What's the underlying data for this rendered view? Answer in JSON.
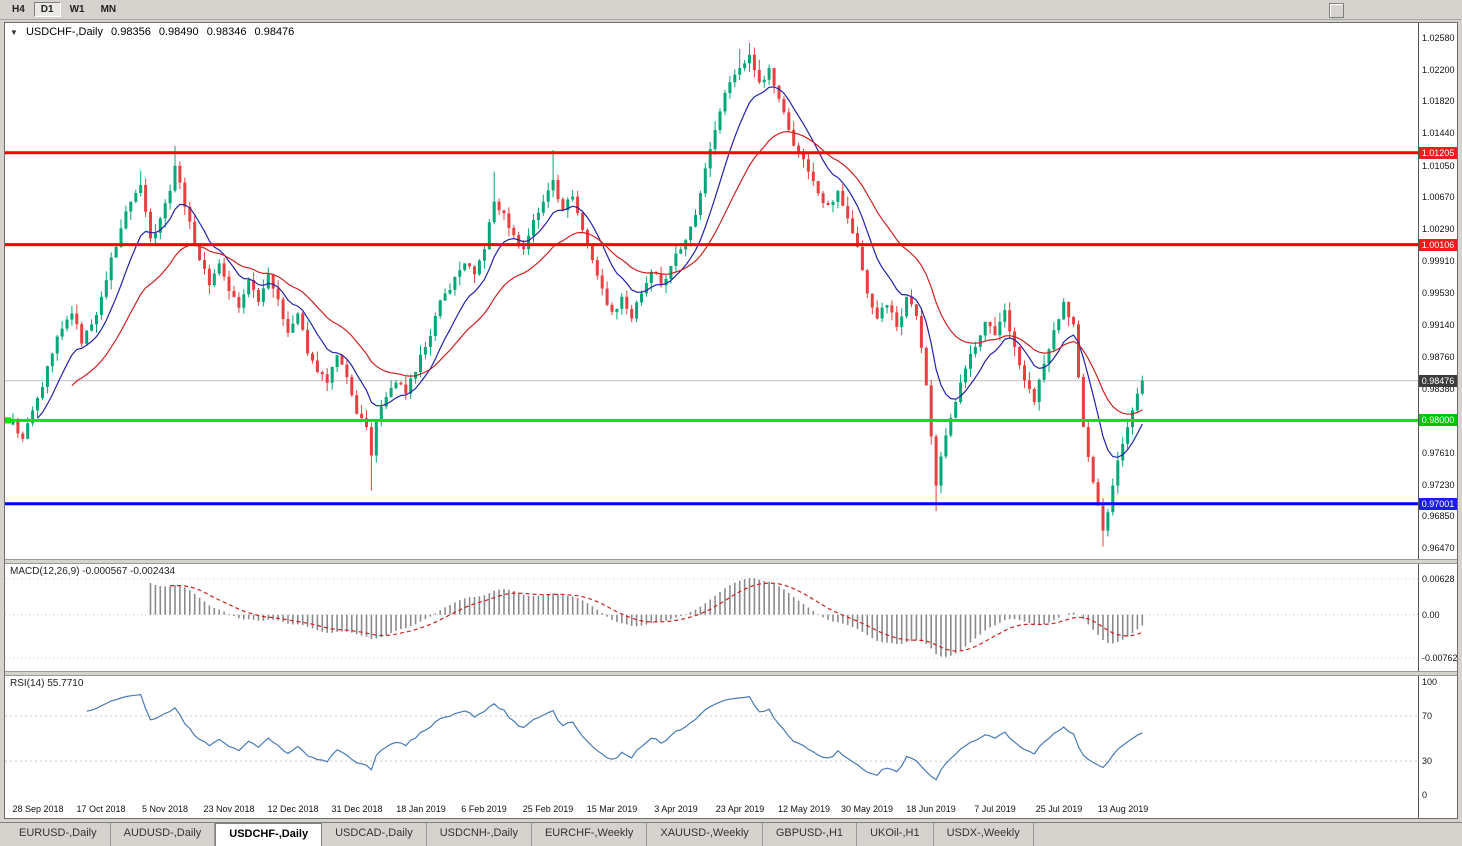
{
  "toolbar": {
    "timeframes": [
      {
        "label": "H4",
        "active": false
      },
      {
        "label": "D1",
        "active": true
      },
      {
        "label": "W1",
        "active": false
      },
      {
        "label": "MN",
        "active": false
      }
    ]
  },
  "chart_header": {
    "symbol": "USDCHF-,Daily",
    "open": "0.98356",
    "high": "0.98490",
    "low": "0.98346",
    "close": "0.98476"
  },
  "indicators": {
    "macd": "MACD(12,26,9) -0.000567 -0.002434",
    "rsi": "RSI(14) 55.7710"
  },
  "tabs": {
    "active_index": 2,
    "items": [
      "EURUSD-,Daily",
      "AUDUSD-,Daily",
      "USDCHF-,Daily",
      "USDCAD-,Daily",
      "USDCNH-,Daily",
      "EURCHF-,Weekly",
      "XAUUSD-,Weekly",
      "GBPUSD-,H1",
      "UKOil-,H1",
      "USDX-,Weekly"
    ]
  },
  "chart_data": {
    "type": "candlestick",
    "symbol": "USDCHF",
    "timeframe": "Daily",
    "current_ohlc": {
      "open": 0.98356,
      "high": 0.9849,
      "low": 0.98346,
      "close": 0.98476
    },
    "current_price": 0.98476,
    "ylim": [
      0.9634,
      1.0276
    ],
    "bars_total": 231,
    "first_open": 0.9795,
    "y_ticks": [
      "1.02580",
      "1.02200",
      "1.01820",
      "1.01440",
      "1.01050",
      "1.00670",
      "1.00290",
      "0.99910",
      "0.99530",
      "0.99140",
      "0.98760",
      "0.98380",
      "0.97610",
      "0.97230",
      "0.96850",
      "0.96470"
    ],
    "badges": [
      {
        "label": "1.01205",
        "price": 1.01205,
        "color": "#ee1c1c"
      },
      {
        "label": "1.00106",
        "price": 1.00106,
        "color": "#ee1c1c"
      },
      {
        "label": "0.98476",
        "price": 0.98476,
        "color": "#3c3c3c"
      },
      {
        "label": "0.98000",
        "price": 0.98,
        "color": "#00c400"
      },
      {
        "label": "0.97001",
        "price": 0.97001,
        "color": "#1c1cee"
      }
    ],
    "hlines": [
      {
        "price": 1.01205,
        "color": "#ff0000",
        "width": 3,
        "name": "resistance-upper"
      },
      {
        "price": 1.00106,
        "color": "#ff0000",
        "width": 3,
        "name": "resistance-lower"
      },
      {
        "price": 0.98,
        "color": "#00e400",
        "width": 3,
        "marker": true,
        "name": "support-green"
      },
      {
        "price": 0.97001,
        "color": "#0000ff",
        "width": 3,
        "name": "support-blue"
      }
    ],
    "x_labels": [
      [
        "28 Sep 2018",
        5
      ],
      [
        "17 Oct 2018",
        18
      ],
      [
        "5 Nov 2018",
        31
      ],
      [
        "23 Nov 2018",
        44
      ],
      [
        "12 Dec 2018",
        57
      ],
      [
        "31 Dec 2018",
        70
      ],
      [
        "18 Jan 2019",
        83
      ],
      [
        "6 Feb 2019",
        96
      ],
      [
        "25 Feb 2019",
        109
      ],
      [
        "15 Mar 2019",
        122
      ],
      [
        "3 Apr 2019",
        135
      ],
      [
        "23 Apr 2019",
        148
      ],
      [
        "12 May 2019",
        161
      ],
      [
        "30 May 2019",
        174
      ],
      [
        "18 Jun 2019",
        187
      ],
      [
        "7 Jul 2019",
        200
      ],
      [
        "25 Jul 2019",
        213
      ],
      [
        "13 Aug 2019",
        226
      ]
    ],
    "price_waypoints": [
      [
        0,
        0.98
      ],
      [
        2,
        0.9778
      ],
      [
        4,
        0.9812
      ],
      [
        6,
        0.984
      ],
      [
        8,
        0.988
      ],
      [
        10,
        0.991
      ],
      [
        12,
        0.9928
      ],
      [
        14,
        0.9892
      ],
      [
        16,
        0.9915
      ],
      [
        18,
        0.9948
      ],
      [
        20,
        0.9995
      ],
      [
        22,
        1.003
      ],
      [
        24,
        1.0062
      ],
      [
        26,
        1.0082
      ],
      [
        28,
        1.0018
      ],
      [
        30,
        1.0042
      ],
      [
        32,
        1.0075
      ],
      [
        33,
        1.0105
      ],
      [
        34,
        1.0085
      ],
      [
        36,
        1.0038
      ],
      [
        38,
        0.9992
      ],
      [
        40,
        0.9962
      ],
      [
        42,
        0.9988
      ],
      [
        44,
        0.9955
      ],
      [
        46,
        0.9935
      ],
      [
        48,
        0.9968
      ],
      [
        50,
        0.9942
      ],
      [
        52,
        0.9975
      ],
      [
        54,
        0.9945
      ],
      [
        56,
        0.9905
      ],
      [
        58,
        0.9928
      ],
      [
        60,
        0.988
      ],
      [
        62,
        0.9858
      ],
      [
        64,
        0.9845
      ],
      [
        66,
        0.9878
      ],
      [
        68,
        0.9852
      ],
      [
        70,
        0.9808
      ],
      [
        72,
        0.9792
      ],
      [
        73,
        0.9758
      ],
      [
        74,
        0.98
      ],
      [
        76,
        0.9828
      ],
      [
        78,
        0.9845
      ],
      [
        80,
        0.9832
      ],
      [
        82,
        0.9858
      ],
      [
        84,
        0.9888
      ],
      [
        86,
        0.9925
      ],
      [
        88,
        0.9952
      ],
      [
        90,
        0.9972
      ],
      [
        92,
        0.9988
      ],
      [
        94,
        0.9975
      ],
      [
        96,
        1.0005
      ],
      [
        98,
        1.0062
      ],
      [
        100,
        1.0048
      ],
      [
        102,
        1.0022
      ],
      [
        104,
        1.0005
      ],
      [
        106,
        1.004
      ],
      [
        108,
        1.0062
      ],
      [
        110,
        1.0088
      ],
      [
        112,
        1.0052
      ],
      [
        114,
        1.0068
      ],
      [
        116,
        1.0028
      ],
      [
        118,
        0.9992
      ],
      [
        120,
        0.9958
      ],
      [
        122,
        0.993
      ],
      [
        124,
        0.9948
      ],
      [
        126,
        0.9922
      ],
      [
        128,
        0.9952
      ],
      [
        130,
        0.9978
      ],
      [
        132,
        0.9962
      ],
      [
        134,
        0.9985
      ],
      [
        136,
        1.0005
      ],
      [
        138,
        1.0032
      ],
      [
        140,
        1.0072
      ],
      [
        142,
        1.0125
      ],
      [
        144,
        1.017
      ],
      [
        146,
        1.0205
      ],
      [
        148,
        1.0222
      ],
      [
        150,
        1.0238
      ],
      [
        152,
        1.0205
      ],
      [
        154,
        1.0222
      ],
      [
        156,
        1.0185
      ],
      [
        158,
        1.0148
      ],
      [
        160,
        1.0122
      ],
      [
        162,
        1.0098
      ],
      [
        164,
        1.0072
      ],
      [
        166,
        1.0058
      ],
      [
        168,
        1.0075
      ],
      [
        170,
        1.0042
      ],
      [
        172,
        1.0008
      ],
      [
        174,
        0.9952
      ],
      [
        176,
        0.9922
      ],
      [
        178,
        0.9938
      ],
      [
        180,
        0.9912
      ],
      [
        182,
        0.9948
      ],
      [
        184,
        0.9925
      ],
      [
        186,
        0.9842
      ],
      [
        188,
        0.9722
      ],
      [
        190,
        0.9782
      ],
      [
        192,
        0.9822
      ],
      [
        194,
        0.9862
      ],
      [
        196,
        0.9888
      ],
      [
        198,
        0.9918
      ],
      [
        200,
        0.9902
      ],
      [
        202,
        0.9932
      ],
      [
        204,
        0.9888
      ],
      [
        206,
        0.9848
      ],
      [
        208,
        0.9822
      ],
      [
        210,
        0.9868
      ],
      [
        212,
        0.9908
      ],
      [
        214,
        0.9942
      ],
      [
        216,
        0.9915
      ],
      [
        217,
        0.9852
      ],
      [
        218,
        0.9792
      ],
      [
        220,
        0.9726
      ],
      [
        221,
        0.9698
      ],
      [
        222,
        0.9668
      ],
      [
        223,
        0.969
      ],
      [
        224,
        0.9722
      ],
      [
        225,
        0.9752
      ],
      [
        226,
        0.9772
      ],
      [
        227,
        0.9792
      ],
      [
        228,
        0.9812
      ],
      [
        229,
        0.9832
      ],
      [
        230,
        0.98476
      ]
    ],
    "wick_overrides": [
      {
        "bar": 26,
        "high": 1.0099
      },
      {
        "bar": 33,
        "high": 1.0129
      },
      {
        "bar": 73,
        "low": 0.9716
      },
      {
        "bar": 98,
        "high": 1.0098
      },
      {
        "bar": 110,
        "high": 1.0124
      },
      {
        "bar": 148,
        "high": 1.0245
      },
      {
        "bar": 150,
        "high": 1.0252
      },
      {
        "bar": 152,
        "high": 1.0232
      },
      {
        "bar": 188,
        "low": 0.9691
      },
      {
        "bar": 222,
        "low": 0.9649
      }
    ],
    "moving_averages": [
      {
        "period": 10,
        "color": "#2222aa"
      },
      {
        "period": 25,
        "color": "#cc2222"
      }
    ],
    "macd": {
      "fast": 12,
      "slow": 26,
      "signal": 9,
      "value": -0.000567,
      "signal_value": -0.002434,
      "axis": [
        {
          "label": "0.00628",
          "value": 0.00628
        },
        {
          "label": "0.00",
          "value": 0
        },
        {
          "label": "-0.00762",
          "value": -0.00762
        }
      ]
    },
    "rsi": {
      "period": 14,
      "value": 55.771,
      "levels": [
        70,
        30
      ],
      "axis": [
        {
          "label": "100",
          "value": 100
        },
        {
          "label": "70",
          "value": 70
        },
        {
          "label": "30",
          "value": 30
        },
        {
          "label": "0",
          "value": 0
        }
      ]
    },
    "colors": {
      "bull": "#00a878",
      "bear": "#e84040",
      "ma_fast": "#2222aa",
      "ma_slow": "#cc2222",
      "macd_hist": "#8a8a8a",
      "macd_signal": "#cc2222",
      "rsi_line": "#4a7ab5",
      "current_line": "#c0c0c0",
      "grid_dotted": "#c8c8c8"
    }
  }
}
